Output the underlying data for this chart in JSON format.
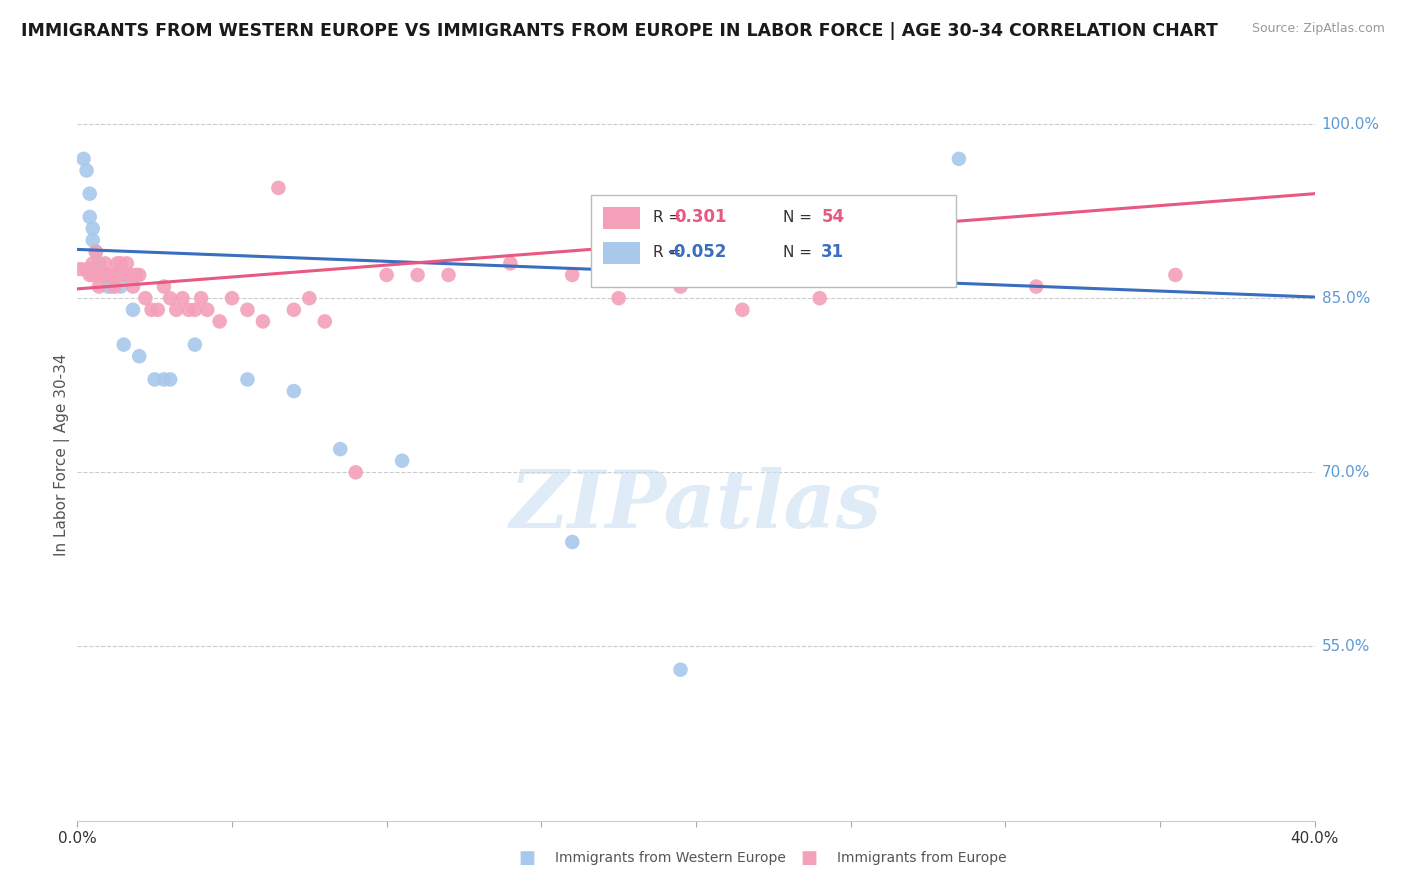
{
  "title": "IMMIGRANTS FROM WESTERN EUROPE VS IMMIGRANTS FROM EUROPE IN LABOR FORCE | AGE 30-34 CORRELATION CHART",
  "source": "Source: ZipAtlas.com",
  "ylabel": "In Labor Force | Age 30-34",
  "x_min": 0.0,
  "x_max": 0.4,
  "y_min": 0.4,
  "y_max": 1.03,
  "right_ytick_labels": [
    "100.0%",
    "85.0%",
    "70.0%",
    "55.0%"
  ],
  "right_ytick_values": [
    1.0,
    0.85,
    0.7,
    0.55
  ],
  "blue_R": -0.052,
  "blue_N": 31,
  "pink_R": 0.301,
  "pink_N": 54,
  "blue_color": "#A8C8EC",
  "pink_color": "#F4A0B8",
  "blue_line_color": "#3A6EBF",
  "pink_line_color": "#E85880",
  "legend_label_blue": "Immigrants from Western Europe",
  "legend_label_pink": "Immigrants from Europe",
  "watermark_text": "ZIPatlas",
  "background_color": "#ffffff",
  "grid_color": "#cccccc",
  "right_label_color": "#5B9BD5",
  "blue_line_x0": 0.0,
  "blue_line_y0": 0.892,
  "blue_line_x1": 0.4,
  "blue_line_y1": 0.851,
  "pink_line_x0": 0.0,
  "pink_line_y0": 0.858,
  "pink_line_x1": 0.4,
  "pink_line_y1": 0.94,
  "blue_scatter_x": [
    0.002,
    0.003,
    0.004,
    0.004,
    0.005,
    0.005,
    0.006,
    0.007,
    0.007,
    0.008,
    0.009,
    0.01,
    0.011,
    0.012,
    0.013,
    0.014,
    0.015,
    0.016,
    0.018,
    0.02,
    0.025,
    0.028,
    0.03,
    0.038,
    0.055,
    0.07,
    0.085,
    0.105,
    0.16,
    0.195,
    0.285
  ],
  "blue_scatter_y": [
    0.97,
    0.96,
    0.94,
    0.92,
    0.91,
    0.9,
    0.89,
    0.88,
    0.88,
    0.87,
    0.87,
    0.86,
    0.86,
    0.87,
    0.87,
    0.86,
    0.81,
    0.87,
    0.84,
    0.8,
    0.78,
    0.78,
    0.78,
    0.81,
    0.78,
    0.77,
    0.72,
    0.71,
    0.64,
    0.53,
    0.97
  ],
  "pink_scatter_x": [
    0.001,
    0.003,
    0.004,
    0.005,
    0.005,
    0.006,
    0.006,
    0.007,
    0.008,
    0.009,
    0.01,
    0.011,
    0.012,
    0.013,
    0.013,
    0.014,
    0.015,
    0.016,
    0.017,
    0.018,
    0.019,
    0.02,
    0.022,
    0.024,
    0.026,
    0.028,
    0.03,
    0.032,
    0.034,
    0.036,
    0.038,
    0.04,
    0.042,
    0.046,
    0.05,
    0.055,
    0.06,
    0.065,
    0.07,
    0.075,
    0.08,
    0.09,
    0.1,
    0.11,
    0.12,
    0.14,
    0.16,
    0.175,
    0.195,
    0.215,
    0.24,
    0.27,
    0.31,
    0.355
  ],
  "pink_scatter_y": [
    0.875,
    0.875,
    0.87,
    0.88,
    0.87,
    0.87,
    0.89,
    0.86,
    0.87,
    0.88,
    0.87,
    0.87,
    0.86,
    0.87,
    0.88,
    0.88,
    0.87,
    0.88,
    0.87,
    0.86,
    0.87,
    0.87,
    0.85,
    0.84,
    0.84,
    0.86,
    0.85,
    0.84,
    0.85,
    0.84,
    0.84,
    0.85,
    0.84,
    0.83,
    0.85,
    0.84,
    0.83,
    0.945,
    0.84,
    0.85,
    0.83,
    0.7,
    0.87,
    0.87,
    0.87,
    0.88,
    0.87,
    0.85,
    0.86,
    0.84,
    0.85,
    0.87,
    0.86,
    0.87
  ]
}
